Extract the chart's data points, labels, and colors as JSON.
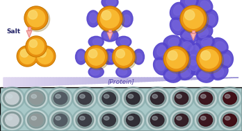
{
  "fig_width": 3.48,
  "fig_height": 1.89,
  "dpi": 100,
  "bg_color": "#ffffff",
  "gold_outer": "#C87800",
  "gold_mid": "#E89010",
  "gold_inner": "#F8B830",
  "gold_shine": "#FADA70",
  "protein_dark": "#3322AA",
  "protein_mid": "#5544CC",
  "protein_light": "#7766DD",
  "arrow_fill": "#F8B8B8",
  "arrow_edge": "#E88888",
  "salt_text": "Salt",
  "protein_label": "[Protein]",
  "tri_left_color": "#E8E0F4",
  "tri_right_color": "#B8A8E0",
  "well_bg": "#A8C8C8",
  "well_colors": [
    "#C8D0D4",
    "#909898",
    "#505860",
    "#383840",
    "#303038",
    "#2C2830",
    "#2C2028",
    "#301820",
    "#381018",
    "#3C0810"
  ],
  "n_cols": 10,
  "n_rows": 2
}
